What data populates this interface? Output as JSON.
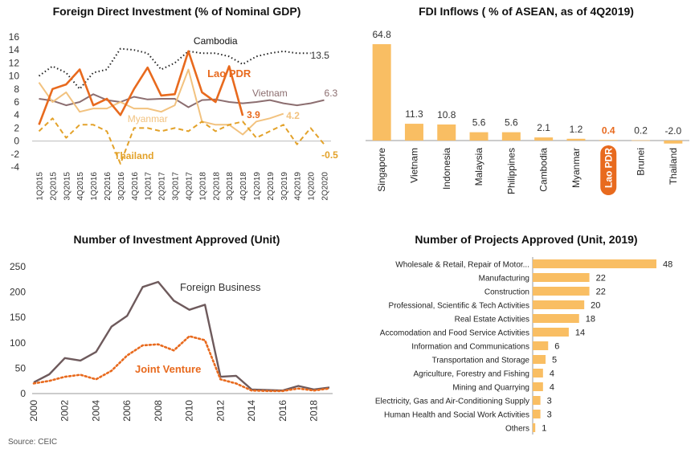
{
  "source": "Source: CEIC",
  "colors": {
    "cambodia": "#222222",
    "laos": "#E86A1E",
    "vietnam": "#8C6E70",
    "myanmar": "#F2C27F",
    "thailand": "#E3A22A",
    "bar": "#F9BE63",
    "foreign": "#6E5A5C",
    "joint": "#E86A1E"
  },
  "chart_data": [
    {
      "type": "line",
      "title": "Foreign Direct Investment (% of Nominal GDP)",
      "x": [
        "1Q2015",
        "2Q2015",
        "3Q2015",
        "4Q2015",
        "1Q2016",
        "2Q2016",
        "3Q2016",
        "4Q2016",
        "1Q2017",
        "2Q2017",
        "3Q2017",
        "4Q2017",
        "1Q2018",
        "2Q2018",
        "3Q2018",
        "4Q2018",
        "1Q2019",
        "2Q2019",
        "3Q2019",
        "4Q2019",
        "1Q2020",
        "2Q2020"
      ],
      "ylim": [
        -4,
        16
      ],
      "yticks": [
        -4,
        -2,
        0,
        2,
        4,
        6,
        8,
        10,
        12,
        14,
        16
      ],
      "series": [
        {
          "name": "Cambodia",
          "end_label": "13.5",
          "values": [
            10.0,
            11.5,
            10.5,
            8.0,
            10.5,
            11.0,
            14.2,
            14.0,
            13.5,
            11.0,
            12.0,
            13.8,
            13.5,
            13.5,
            13.0,
            11.8,
            13.0,
            13.5,
            13.8,
            13.5,
            13.5,
            null
          ]
        },
        {
          "name": "Lao PDR",
          "end_label": "3.9",
          "values": [
            2.5,
            8.0,
            8.7,
            11.0,
            5.5,
            6.5,
            4.0,
            8.0,
            11.3,
            7.0,
            7.2,
            13.8,
            7.5,
            6.0,
            11.5,
            3.9,
            null,
            null,
            null,
            null,
            null,
            null
          ]
        },
        {
          "name": "Vietnam",
          "end_label": "6.3",
          "values": [
            6.5,
            6.2,
            5.5,
            6.0,
            7.2,
            6.3,
            6.0,
            6.8,
            6.4,
            6.5,
            6.5,
            5.2,
            6.3,
            6.4,
            6.0,
            5.8,
            6.0,
            6.3,
            5.8,
            5.5,
            5.8,
            6.3
          ]
        },
        {
          "name": "Myanmar",
          "end_label": "4.2",
          "values": [
            9.0,
            6.0,
            7.5,
            4.5,
            5.0,
            5.0,
            6.0,
            5.0,
            5.0,
            4.5,
            5.5,
            11.0,
            3.0,
            2.5,
            2.5,
            1.0,
            3.0,
            3.5,
            4.2,
            null,
            null,
            null
          ]
        },
        {
          "name": "Thailand",
          "end_label": "-0.5",
          "values": [
            1.5,
            3.5,
            0.5,
            2.5,
            2.5,
            1.5,
            -3.5,
            2.0,
            2.0,
            1.5,
            2.0,
            1.5,
            3.0,
            1.5,
            2.5,
            3.0,
            0.5,
            1.5,
            2.5,
            -0.5,
            2.0,
            -0.5
          ]
        }
      ]
    },
    {
      "type": "bar",
      "title": "FDI Inflows ( % of ASEAN, as of 4Q2019)",
      "categories": [
        "Singapore",
        "Vietnam",
        "Indonesia",
        "Malaysia",
        "Philippines",
        "Cambodia",
        "Myanmar",
        "Lao PDR",
        "Brunei",
        "Thailand"
      ],
      "values": [
        64.8,
        11.3,
        10.8,
        5.6,
        5.6,
        2.1,
        1.2,
        0.4,
        0.2,
        -2.0
      ],
      "value_labels": [
        "64.8",
        "11.3",
        "10.8",
        "5.6",
        "5.6",
        "2.1",
        "1.2",
        "0.4",
        "0.2",
        "-2.0"
      ],
      "highlight": "Lao PDR"
    },
    {
      "type": "line",
      "title": "Number of Investment Approved (Unit)",
      "x": [
        2000,
        2001,
        2002,
        2003,
        2004,
        2005,
        2006,
        2007,
        2008,
        2009,
        2010,
        2011,
        2012,
        2013,
        2014,
        2015,
        2016,
        2017,
        2018,
        2019
      ],
      "xticks": [
        2000,
        2002,
        2004,
        2006,
        2008,
        2010,
        2012,
        2014,
        2016,
        2018
      ],
      "ylim": [
        0,
        250
      ],
      "yticks": [
        0,
        50,
        100,
        150,
        200,
        250
      ],
      "series": [
        {
          "name": "Foreign Business",
          "values": [
            22,
            38,
            70,
            65,
            82,
            132,
            153,
            210,
            220,
            183,
            165,
            175,
            33,
            35,
            8,
            7,
            6,
            15,
            8,
            12
          ]
        },
        {
          "name": "Joint Venture",
          "values": [
            20,
            25,
            33,
            37,
            28,
            45,
            75,
            95,
            97,
            85,
            113,
            105,
            28,
            20,
            6,
            5,
            5,
            10,
            6,
            10
          ]
        }
      ]
    },
    {
      "type": "bar",
      "orientation": "horizontal",
      "title": "Number of Projects Approved (Unit, 2019)",
      "categories": [
        "Wholesale & Retail, Repair of Motor...",
        "Manufacturing",
        "Construction",
        "Professional, Scientific & Tech Activities",
        "Real Estate Activities",
        "Accomodation and Food Service Activities",
        "Information and Communications",
        "Transportation and Storage",
        "Agriculture, Forestry and Fishing",
        "Mining and Quarrying",
        "Electricity, Gas and Air-Conditioning Supply",
        "Human Health and Social Work Activities",
        "Others"
      ],
      "values": [
        48,
        22,
        22,
        20,
        18,
        14,
        6,
        5,
        4,
        4,
        3,
        3,
        1
      ]
    }
  ]
}
